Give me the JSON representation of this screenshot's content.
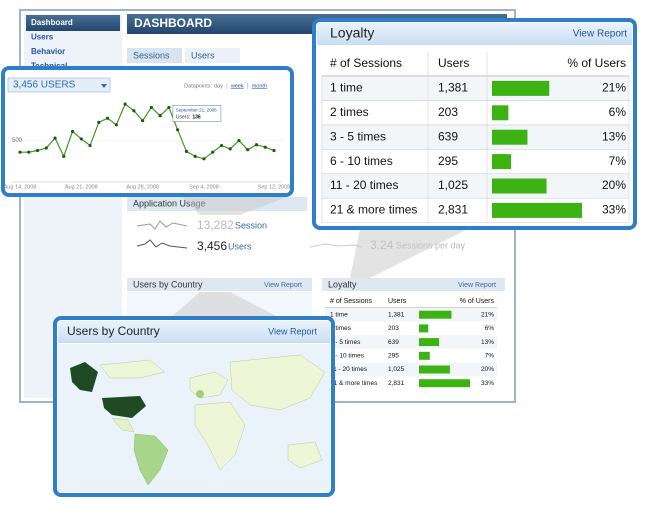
{
  "sidebar": {
    "items": [
      "Dashboard",
      "Users",
      "Behavior",
      "Technical"
    ]
  },
  "header": {
    "title": "DASHBOARD",
    "tabs": [
      "Sessions",
      "Users"
    ]
  },
  "application_usage": {
    "title": "Application Usage",
    "metrics": [
      {
        "value": "13,282",
        "label": "Session"
      },
      {
        "value": "3,456",
        "label": "Users"
      },
      {
        "value": "3.24",
        "label": "Sessions per day"
      }
    ]
  },
  "users_chart": {
    "type": "line",
    "title": "3,456 USERS",
    "datapoints_label": "Datapoints:",
    "datapoints_options": [
      "day",
      "week",
      "month"
    ],
    "categories": [
      "Aug 14, 2008",
      null,
      null,
      null,
      null,
      null,
      null,
      "Aug 21, 2008",
      null,
      null,
      null,
      null,
      null,
      null,
      "Aug 28, 2008",
      null,
      null,
      null,
      null,
      null,
      null,
      "Sep 4, 2008",
      null,
      null,
      null,
      null,
      null,
      null,
      null,
      "Sep 12, 2008"
    ],
    "values": [
      360,
      360,
      380,
      410,
      530,
      310,
      610,
      520,
      440,
      720,
      770,
      690,
      940,
      860,
      740,
      900,
      800,
      900,
      630,
      370,
      310,
      280,
      360,
      440,
      400,
      500,
      390,
      450,
      420,
      380
    ],
    "ylim": [
      0,
      1050
    ],
    "yticks": [
      500
    ],
    "color": "#3d9a1c",
    "tooltip": {
      "title": "September 21, 2008",
      "label": "Users:",
      "value": "136"
    }
  },
  "country": {
    "title": "Users by Country",
    "action": "View Report"
  },
  "loyalty": {
    "title": "Loyalty",
    "action": "View Report",
    "columns": [
      "# of Sessions",
      "Users",
      "% of Users"
    ],
    "color": "#3cb313",
    "rows": [
      {
        "sessions": "1 time",
        "users": "1,381",
        "percent": 21,
        "percent_label": "21%"
      },
      {
        "sessions": "2 times",
        "users": "203",
        "percent": 6,
        "percent_label": "6%"
      },
      {
        "sessions": "3 - 5 times",
        "users": "639",
        "percent": 13,
        "percent_label": "13%"
      },
      {
        "sessions": "6 - 10 times",
        "users": "295",
        "percent": 7,
        "percent_label": "7%"
      },
      {
        "sessions": "11 - 20 times",
        "users": "1,025",
        "percent": 20,
        "percent_label": "20%"
      },
      {
        "sessions": "21 & more times",
        "users": "2,831",
        "percent": 33,
        "percent_label": "33%"
      }
    ]
  }
}
